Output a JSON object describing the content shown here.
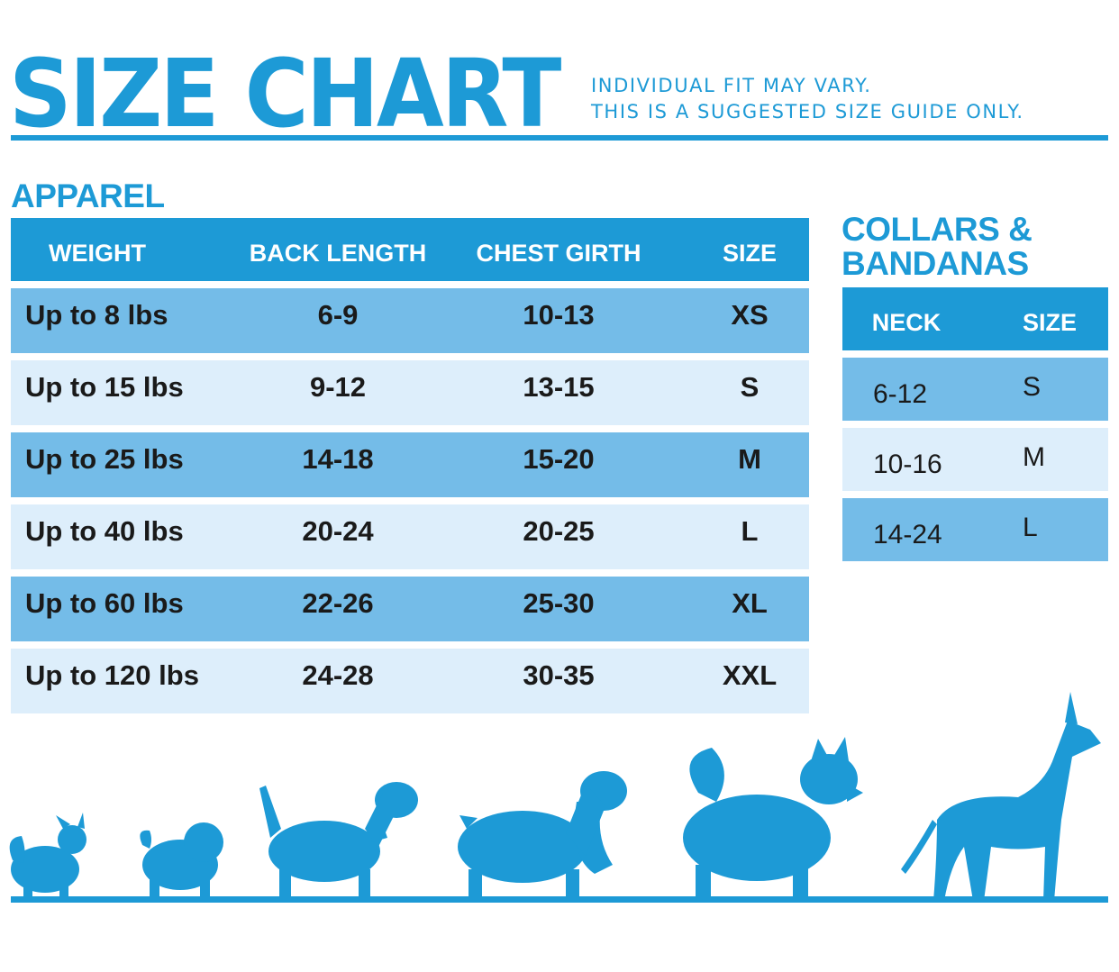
{
  "header": {
    "title": "SIZE CHART",
    "disclaimer_line1": "INDIVIDUAL FIT MAY VARY.",
    "disclaimer_line2": "THIS IS A SUGGESTED SIZE GUIDE ONLY."
  },
  "apparel": {
    "title": "APPAREL",
    "columns": [
      "WEIGHT",
      "BACK LENGTH",
      "CHEST GIRTH",
      "SIZE"
    ],
    "rows": [
      [
        "Up to 8 lbs",
        "6-9",
        "10-13",
        "XS"
      ],
      [
        "Up to 15 lbs",
        "9-12",
        "13-15",
        "S"
      ],
      [
        "Up to 25 lbs",
        "14-18",
        "15-20",
        "M"
      ],
      [
        "Up to 40 lbs",
        "20-24",
        "20-25",
        "L"
      ],
      [
        "Up to 60 lbs",
        "22-26",
        "25-30",
        "XL"
      ],
      [
        "Up to 120 lbs",
        "24-28",
        "30-35",
        "XXL"
      ]
    ]
  },
  "collars": {
    "title_line1": "COLLARS &",
    "title_line2": "BANDANAS",
    "columns": [
      "NECK",
      "SIZE"
    ],
    "rows": [
      [
        "6-12",
        "S"
      ],
      [
        "10-16",
        "M"
      ],
      [
        "14-24",
        "L"
      ]
    ]
  },
  "colors": {
    "brand_blue": "#1d9ad6",
    "row_dark": "#74bce8",
    "row_light": "#ddeefb"
  },
  "icons": [
    "chihuahua-silhouette-icon",
    "pug-silhouette-icon",
    "beagle-silhouette-icon",
    "spaniel-silhouette-icon",
    "husky-silhouette-icon",
    "great-dane-silhouette-icon"
  ]
}
